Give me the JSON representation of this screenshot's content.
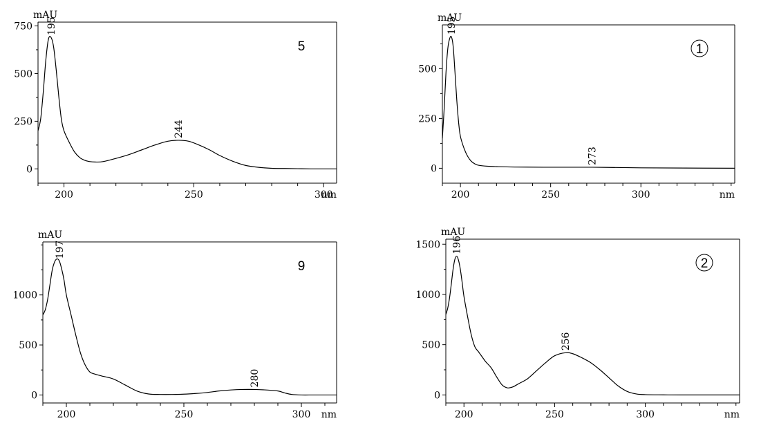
{
  "chart_data": [
    {
      "type": "line",
      "panel_tag": "5",
      "tag_circled": false,
      "ylabel": "mAU",
      "xlabel": "nm",
      "xlim": [
        190,
        305
      ],
      "ylim": [
        -75,
        770
      ],
      "x_ticks": [
        200,
        250,
        300
      ],
      "y_ticks": [
        0,
        250,
        500,
        750
      ],
      "grid": false,
      "peaks": [
        {
          "x": 195,
          "label": "195"
        },
        {
          "x": 244,
          "label": "244"
        }
      ],
      "series": [
        {
          "x": [
            190,
            191,
            192,
            193,
            194,
            195,
            196,
            197,
            198,
            199,
            200,
            202,
            204,
            206,
            208,
            210,
            212,
            215,
            220,
            225,
            230,
            235,
            240,
            244,
            248,
            252,
            256,
            260,
            265,
            270,
            275,
            280,
            285,
            290,
            295,
            300,
            305
          ],
          "y": [
            200,
            260,
            400,
            570,
            680,
            690,
            640,
            520,
            380,
            260,
            200,
            140,
            90,
            60,
            45,
            38,
            36,
            38,
            55,
            75,
            100,
            125,
            145,
            150,
            145,
            125,
            100,
            70,
            40,
            18,
            8,
            3,
            2,
            1,
            0,
            0,
            0
          ]
        }
      ]
    },
    {
      "type": "line",
      "panel_tag": "1",
      "tag_circled": true,
      "ylabel": "mAU",
      "xlabel": "nm",
      "xlim": [
        190,
        352
      ],
      "ylim": [
        -75,
        720
      ],
      "x_ticks": [
        200,
        250,
        300
      ],
      "y_ticks": [
        0,
        250,
        500
      ],
      "grid": false,
      "peaks": [
        {
          "x": 195,
          "label": "195"
        },
        {
          "x": 273,
          "label": "273"
        }
      ],
      "series": [
        {
          "x": [
            190,
            191,
            192,
            193,
            194,
            195,
            196,
            197,
            198,
            199,
            200,
            202,
            204,
            206,
            208,
            210,
            215,
            220,
            230,
            250,
            273,
            300,
            352
          ],
          "y": [
            150,
            300,
            480,
            600,
            650,
            660,
            610,
            480,
            340,
            230,
            160,
            100,
            60,
            35,
            22,
            15,
            10,
            8,
            6,
            5,
            5,
            2,
            0
          ]
        }
      ]
    },
    {
      "type": "line",
      "panel_tag": "9",
      "tag_circled": false,
      "ylabel": "mAU",
      "xlabel": "nm",
      "xlim": [
        190,
        315
      ],
      "ylim": [
        -80,
        1530
      ],
      "x_ticks": [
        200,
        250,
        300
      ],
      "y_ticks": [
        0,
        500,
        1000
      ],
      "grid": false,
      "peaks": [
        {
          "x": 197,
          "label": "197"
        },
        {
          "x": 280,
          "label": "280"
        }
      ],
      "series": [
        {
          "x": [
            190,
            191,
            192,
            193,
            194,
            195,
            196,
            197,
            198,
            199,
            200,
            202,
            204,
            206,
            208,
            210,
            212,
            215,
            220,
            225,
            230,
            235,
            240,
            245,
            250,
            255,
            260,
            265,
            270,
            275,
            280,
            285,
            290,
            293,
            296,
            300,
            305,
            310,
            315
          ],
          "y": [
            800,
            850,
            950,
            1100,
            1250,
            1330,
            1360,
            1340,
            1260,
            1150,
            1000,
            800,
            600,
            420,
            300,
            230,
            210,
            190,
            160,
            100,
            40,
            10,
            5,
            5,
            8,
            15,
            25,
            40,
            50,
            55,
            55,
            50,
            40,
            20,
            5,
            0,
            0,
            0,
            0
          ]
        }
      ]
    },
    {
      "type": "line",
      "panel_tag": "2",
      "tag_circled": true,
      "ylabel": "mAU",
      "xlabel": "nm",
      "xlim": [
        190,
        352
      ],
      "ylim": [
        -80,
        1550
      ],
      "x_ticks": [
        200,
        250,
        300
      ],
      "y_ticks": [
        0,
        500,
        1000,
        1500
      ],
      "grid": false,
      "peaks": [
        {
          "x": 196,
          "label": "196"
        },
        {
          "x": 256,
          "label": "256"
        }
      ],
      "series": [
        {
          "x": [
            190,
            191,
            192,
            193,
            194,
            195,
            196,
            197,
            198,
            199,
            200,
            202,
            204,
            206,
            208,
            210,
            212,
            215,
            218,
            221,
            224,
            227,
            230,
            235,
            240,
            245,
            250,
            256,
            260,
            265,
            270,
            275,
            280,
            285,
            290,
            295,
            300,
            310,
            320,
            352
          ],
          "y": [
            800,
            860,
            960,
            1100,
            1250,
            1350,
            1380,
            1340,
            1250,
            1120,
            980,
            780,
            600,
            480,
            430,
            380,
            330,
            270,
            180,
            100,
            70,
            80,
            110,
            160,
            240,
            320,
            390,
            420,
            410,
            370,
            320,
            250,
            170,
            90,
            35,
            10,
            3,
            1,
            0,
            0
          ]
        }
      ]
    }
  ]
}
